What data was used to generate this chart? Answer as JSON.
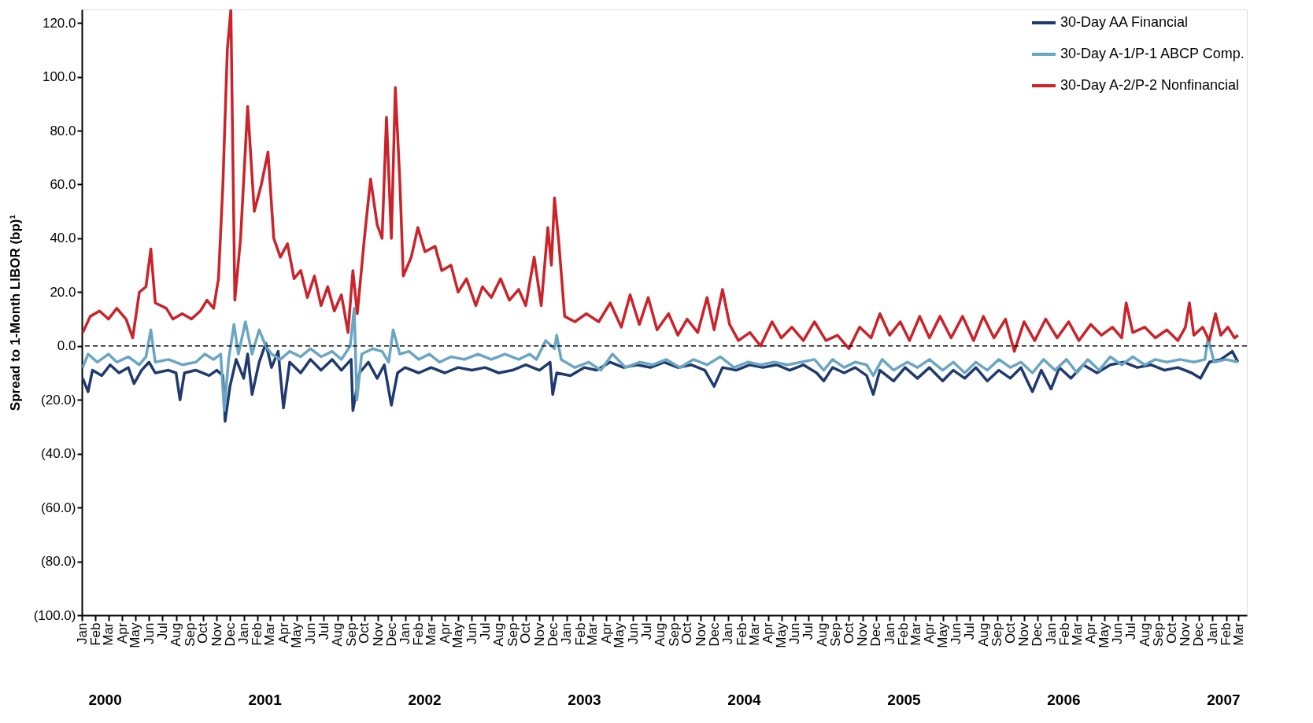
{
  "chart_data": {
    "type": "line",
    "ylabel": "Spread to 1-Month LIBOR (bp)¹",
    "xlim": [
      "2000-01-01",
      "2007-03-20"
    ],
    "ylim": [
      -100,
      125
    ],
    "yticks": [
      {
        "value": -100,
        "label": "(100.0)"
      },
      {
        "value": -80,
        "label": "(80.0)"
      },
      {
        "value": -60,
        "label": "(60.0)"
      },
      {
        "value": -40,
        "label": "(40.0)"
      },
      {
        "value": -20,
        "label": "(20.0)"
      },
      {
        "value": 0,
        "label": "0.0"
      },
      {
        "value": 20,
        "label": "20.0"
      },
      {
        "value": 40,
        "label": "40.0"
      },
      {
        "value": 60,
        "label": "60.0"
      },
      {
        "value": 80,
        "label": "80.0"
      },
      {
        "value": 100,
        "label": "100.0"
      },
      {
        "value": 120,
        "label": "120.0"
      }
    ],
    "xticks": [
      {
        "value": "2000-01",
        "label": "Jan"
      },
      {
        "value": "2000-02",
        "label": "Feb"
      },
      {
        "value": "2000-03",
        "label": "Mar"
      },
      {
        "value": "2000-04",
        "label": "Apr"
      },
      {
        "value": "2000-05",
        "label": "May"
      },
      {
        "value": "2000-06",
        "label": "Jun"
      },
      {
        "value": "2000-07",
        "label": "Jul"
      },
      {
        "value": "2000-08",
        "label": "Aug"
      },
      {
        "value": "2000-09",
        "label": "Sep"
      },
      {
        "value": "2000-10",
        "label": "Oct"
      },
      {
        "value": "2000-11",
        "label": "Nov"
      },
      {
        "value": "2000-12",
        "label": "Dec"
      },
      {
        "value": "2001-01",
        "label": "Jan"
      },
      {
        "value": "2001-02",
        "label": "Feb"
      },
      {
        "value": "2001-03",
        "label": "Mar"
      },
      {
        "value": "2001-04",
        "label": "Apr"
      },
      {
        "value": "2001-05",
        "label": "May"
      },
      {
        "value": "2001-06",
        "label": "Jun"
      },
      {
        "value": "2001-07",
        "label": "Jul"
      },
      {
        "value": "2001-08",
        "label": "Aug"
      },
      {
        "value": "2001-09",
        "label": "Sep"
      },
      {
        "value": "2001-10",
        "label": "Oct"
      },
      {
        "value": "2001-11",
        "label": "Nov"
      },
      {
        "value": "2001-12",
        "label": "Dec"
      },
      {
        "value": "2002-01",
        "label": "Jan"
      },
      {
        "value": "2002-02",
        "label": "Feb"
      },
      {
        "value": "2002-03",
        "label": "Mar"
      },
      {
        "value": "2002-04",
        "label": "Apr"
      },
      {
        "value": "2002-05",
        "label": "May"
      },
      {
        "value": "2002-06",
        "label": "Jun"
      },
      {
        "value": "2002-07",
        "label": "Jul"
      },
      {
        "value": "2002-08",
        "label": "Aug"
      },
      {
        "value": "2002-09",
        "label": "Sep"
      },
      {
        "value": "2002-10",
        "label": "Oct"
      },
      {
        "value": "2002-11",
        "label": "Nov"
      },
      {
        "value": "2002-12",
        "label": "Dec"
      },
      {
        "value": "2003-01",
        "label": "Jan"
      },
      {
        "value": "2003-02",
        "label": "Feb"
      },
      {
        "value": "2003-03",
        "label": "Mar"
      },
      {
        "value": "2003-04",
        "label": "Apr"
      },
      {
        "value": "2003-05",
        "label": "May"
      },
      {
        "value": "2003-06",
        "label": "Jun"
      },
      {
        "value": "2003-07",
        "label": "Jul"
      },
      {
        "value": "2003-08",
        "label": "Aug"
      },
      {
        "value": "2003-09",
        "label": "Sep"
      },
      {
        "value": "2003-10",
        "label": "Oct"
      },
      {
        "value": "2003-11",
        "label": "Nov"
      },
      {
        "value": "2003-12",
        "label": "Dec"
      },
      {
        "value": "2004-01",
        "label": "Jan"
      },
      {
        "value": "2004-02",
        "label": "Feb"
      },
      {
        "value": "2004-03",
        "label": "Mar"
      },
      {
        "value": "2004-04",
        "label": "Apr"
      },
      {
        "value": "2004-05",
        "label": "May"
      },
      {
        "value": "2004-06",
        "label": "Jun"
      },
      {
        "value": "2004-07",
        "label": "Jul"
      },
      {
        "value": "2004-08",
        "label": "Aug"
      },
      {
        "value": "2004-09",
        "label": "Sep"
      },
      {
        "value": "2004-10",
        "label": "Oct"
      },
      {
        "value": "2004-11",
        "label": "Nov"
      },
      {
        "value": "2004-12",
        "label": "Dec"
      },
      {
        "value": "2005-01",
        "label": "Jan"
      },
      {
        "value": "2005-02",
        "label": "Feb"
      },
      {
        "value": "2005-03",
        "label": "Mar"
      },
      {
        "value": "2005-04",
        "label": "Apr"
      },
      {
        "value": "2005-05",
        "label": "May"
      },
      {
        "value": "2005-06",
        "label": "Jun"
      },
      {
        "value": "2005-07",
        "label": "Jul"
      },
      {
        "value": "2005-08",
        "label": "Aug"
      },
      {
        "value": "2005-09",
        "label": "Sep"
      },
      {
        "value": "2005-10",
        "label": "Oct"
      },
      {
        "value": "2005-11",
        "label": "Nov"
      },
      {
        "value": "2005-12",
        "label": "Dec"
      },
      {
        "value": "2006-01",
        "label": "Jan"
      },
      {
        "value": "2006-02",
        "label": "Feb"
      },
      {
        "value": "2006-03",
        "label": "Mar"
      },
      {
        "value": "2006-04",
        "label": "Apr"
      },
      {
        "value": "2006-05",
        "label": "May"
      },
      {
        "value": "2006-06",
        "label": "Jun"
      },
      {
        "value": "2006-07",
        "label": "Jul"
      },
      {
        "value": "2006-08",
        "label": "Aug"
      },
      {
        "value": "2006-09",
        "label": "Sep"
      },
      {
        "value": "2006-10",
        "label": "Oct"
      },
      {
        "value": "2006-11",
        "label": "Nov"
      },
      {
        "value": "2006-12",
        "label": "Dec"
      },
      {
        "value": "2007-01",
        "label": "Jan"
      },
      {
        "value": "2007-02",
        "label": "Feb"
      },
      {
        "value": "2007-03",
        "label": "Mar"
      }
    ],
    "legend": "top right",
    "ref_lines": [
      {
        "axis": "y",
        "value": 0,
        "color": "#000000",
        "line_style": "dashed"
      }
    ],
    "annotations": [
      "2000",
      "2001",
      "2002",
      "2003",
      "2004",
      "2005",
      "2006",
      "2007"
    ],
    "series": [
      {
        "name": "30-Day AA Financial",
        "color": "#1f3a6e",
        "x": [
          "2000-01-03",
          "2000-01-15",
          "2000-01-25",
          "2000-02-15",
          "2000-03-05",
          "2000-03-25",
          "2000-04-15",
          "2000-04-28",
          "2000-05-15",
          "2000-06-01",
          "2000-06-15",
          "2000-07-15",
          "2000-08-01",
          "2000-08-10",
          "2000-08-20",
          "2000-09-15",
          "2000-10-15",
          "2000-11-01",
          "2000-11-15",
          "2000-11-20",
          "2000-12-01",
          "2000-12-15",
          "2001-01-01",
          "2001-01-10",
          "2001-01-20",
          "2001-02-05",
          "2001-02-20",
          "2001-03-05",
          "2001-03-20",
          "2001-04-01",
          "2001-04-15",
          "2001-05-10",
          "2001-06-01",
          "2001-06-25",
          "2001-07-20",
          "2001-08-10",
          "2001-09-01",
          "2001-09-05",
          "2001-09-20",
          "2001-10-10",
          "2001-10-30",
          "2001-11-15",
          "2001-12-01",
          "2001-12-15",
          "2002-01-01",
          "2002-02-01",
          "2002-03-01",
          "2002-04-01",
          "2002-05-01",
          "2002-06-01",
          "2002-07-01",
          "2002-08-01",
          "2002-09-01",
          "2002-10-01",
          "2002-11-01",
          "2002-11-25",
          "2002-12-01",
          "2002-12-10",
          "2003-01-10",
          "2003-02-10",
          "2003-03-10",
          "2003-04-10",
          "2003-05-10",
          "2003-06-10",
          "2003-07-10",
          "2003-08-10",
          "2003-09-10",
          "2003-10-10",
          "2003-11-10",
          "2003-12-01",
          "2003-12-20",
          "2004-01-20",
          "2004-02-20",
          "2004-03-20",
          "2004-04-20",
          "2004-05-20",
          "2004-06-20",
          "2004-07-20",
          "2004-08-05",
          "2004-08-25",
          "2004-09-20",
          "2004-10-15",
          "2004-11-10",
          "2004-11-25",
          "2004-12-10",
          "2005-01-10",
          "2005-02-05",
          "2005-03-05",
          "2005-04-01",
          "2005-05-01",
          "2005-05-25",
          "2005-06-20",
          "2005-07-15",
          "2005-08-10",
          "2005-09-05",
          "2005-10-01",
          "2005-10-25",
          "2005-11-20",
          "2005-12-10",
          "2006-01-01",
          "2006-01-20",
          "2006-02-15",
          "2006-03-15",
          "2006-04-15",
          "2006-05-15",
          "2006-06-15",
          "2006-07-15",
          "2006-08-15",
          "2006-09-15",
          "2006-10-15",
          "2006-11-15",
          "2006-12-05",
          "2006-12-25",
          "2007-01-20",
          "2007-02-15",
          "2007-02-28"
        ],
        "values": [
          -12,
          -17,
          -9,
          -11,
          -7,
          -10,
          -8,
          -14,
          -9,
          -6,
          -10,
          -9,
          -10,
          -20,
          -10,
          -9,
          -11,
          -9,
          -11,
          -28,
          -15,
          -5,
          -12,
          -3,
          -18,
          -6,
          1,
          -8,
          -2,
          -23,
          -6,
          -10,
          -5,
          -9,
          -5,
          -9,
          -5,
          -24,
          -10,
          -6,
          -12,
          -7,
          -22,
          -10,
          -8,
          -10,
          -8,
          -10,
          -8,
          -9,
          -8,
          -10,
          -9,
          -7,
          -9,
          -6,
          -18,
          -10,
          -11,
          -8,
          -9,
          -6,
          -8,
          -7,
          -8,
          -6,
          -8,
          -7,
          -9,
          -15,
          -8,
          -9,
          -7,
          -8,
          -7,
          -9,
          -7,
          -10,
          -13,
          -8,
          -10,
          -8,
          -11,
          -18,
          -9,
          -13,
          -8,
          -12,
          -8,
          -13,
          -9,
          -12,
          -8,
          -13,
          -9,
          -12,
          -8,
          -17,
          -9,
          -16,
          -8,
          -12,
          -7,
          -10,
          -7,
          -6,
          -8,
          -7,
          -9,
          -8,
          -10,
          -12,
          -6,
          -5,
          -2,
          -6
        ]
      },
      {
        "name": "30-Day A-1/P-1 ABCP Comp.",
        "color": "#6aa6c4",
        "x": [
          "2000-01-03",
          "2000-01-15",
          "2000-02-05",
          "2000-03-01",
          "2000-03-20",
          "2000-04-15",
          "2000-05-10",
          "2000-05-25",
          "2000-06-05",
          "2000-06-15",
          "2000-07-15",
          "2000-08-15",
          "2000-09-15",
          "2000-10-05",
          "2000-10-25",
          "2000-11-10",
          "2000-11-18",
          "2000-11-28",
          "2000-12-10",
          "2000-12-20",
          "2001-01-05",
          "2001-01-20",
          "2001-02-05",
          "2001-02-20",
          "2001-03-05",
          "2001-03-25",
          "2001-04-15",
          "2001-05-10",
          "2001-06-01",
          "2001-06-25",
          "2001-07-20",
          "2001-08-10",
          "2001-08-30",
          "2001-09-08",
          "2001-09-14",
          "2001-09-25",
          "2001-10-20",
          "2001-11-10",
          "2001-11-25",
          "2001-12-05",
          "2001-12-20",
          "2002-01-10",
          "2002-02-01",
          "2002-02-25",
          "2002-03-20",
          "2002-04-15",
          "2002-05-15",
          "2002-06-15",
          "2002-07-15",
          "2002-08-15",
          "2002-09-15",
          "2002-10-10",
          "2002-10-25",
          "2002-11-15",
          "2002-12-05",
          "2002-12-10",
          "2002-12-20",
          "2003-01-20",
          "2003-02-20",
          "2003-03-20",
          "2003-04-15",
          "2003-05-15",
          "2003-06-15",
          "2003-07-15",
          "2003-08-15",
          "2003-09-15",
          "2003-10-15",
          "2003-11-15",
          "2003-12-15",
          "2004-01-15",
          "2004-02-15",
          "2004-03-15",
          "2004-04-15",
          "2004-05-15",
          "2004-06-15",
          "2004-07-15",
          "2004-08-05",
          "2004-08-25",
          "2004-09-20",
          "2004-10-15",
          "2004-11-10",
          "2004-11-25",
          "2004-12-15",
          "2005-01-10",
          "2005-02-10",
          "2005-03-05",
          "2005-04-01",
          "2005-05-01",
          "2005-05-25",
          "2005-06-20",
          "2005-07-15",
          "2005-08-10",
          "2005-09-05",
          "2005-10-01",
          "2005-10-25",
          "2005-11-20",
          "2005-12-15",
          "2006-01-10",
          "2006-02-05",
          "2006-03-01",
          "2006-03-25",
          "2006-04-20",
          "2006-05-15",
          "2006-06-10",
          "2006-07-05",
          "2006-08-01",
          "2006-08-25",
          "2006-09-20",
          "2006-10-20",
          "2006-11-20",
          "2006-12-15",
          "2006-12-22",
          "2007-01-05",
          "2007-02-01",
          "2007-02-28"
        ],
        "values": [
          -8,
          -3,
          -6,
          -3,
          -6,
          -4,
          -7,
          -4,
          6,
          -6,
          -5,
          -7,
          -6,
          -3,
          -5,
          -3,
          -24,
          -5,
          8,
          -3,
          9,
          -3,
          6,
          0,
          -3,
          -5,
          -2,
          -4,
          -1,
          -4,
          -2,
          -5,
          0,
          14,
          -20,
          -3,
          -1,
          -2,
          -6,
          6,
          -3,
          -2,
          -5,
          -3,
          -6,
          -4,
          -5,
          -3,
          -5,
          -3,
          -5,
          -3,
          -5,
          2,
          -1,
          4,
          -5,
          -8,
          -6,
          -9,
          -3,
          -8,
          -6,
          -7,
          -5,
          -8,
          -5,
          -7,
          -4,
          -8,
          -6,
          -7,
          -6,
          -7,
          -6,
          -5,
          -9,
          -5,
          -8,
          -6,
          -7,
          -11,
          -5,
          -9,
          -6,
          -8,
          -5,
          -9,
          -6,
          -10,
          -6,
          -9,
          -5,
          -8,
          -6,
          -10,
          -5,
          -9,
          -5,
          -10,
          -5,
          -9,
          -4,
          -7,
          -4,
          -7,
          -5,
          -6,
          -5,
          -6,
          -5,
          3,
          -6,
          -5,
          -6
        ]
      },
      {
        "name": "30-Day A-2/P-2 Nonfinancial",
        "color": "#cc2229",
        "x": [
          "2000-01-03",
          "2000-01-20",
          "2000-02-10",
          "2000-03-01",
          "2000-03-20",
          "2000-04-10",
          "2000-04-25",
          "2000-05-10",
          "2000-05-25",
          "2000-06-05",
          "2000-06-15",
          "2000-07-10",
          "2000-07-25",
          "2000-08-15",
          "2000-09-05",
          "2000-09-25",
          "2000-10-10",
          "2000-10-25",
          "2000-11-05",
          "2000-11-15",
          "2000-11-25",
          "2000-12-03",
          "2000-12-12",
          "2000-12-25",
          "2001-01-10",
          "2001-01-25",
          "2001-02-10",
          "2001-02-25",
          "2001-03-10",
          "2001-03-25",
          "2001-04-10",
          "2001-04-25",
          "2001-05-10",
          "2001-05-25",
          "2001-06-10",
          "2001-06-25",
          "2001-07-10",
          "2001-07-25",
          "2001-08-10",
          "2001-08-25",
          "2001-09-05",
          "2001-09-15",
          "2001-10-01",
          "2001-10-15",
          "2001-10-30",
          "2001-11-10",
          "2001-11-20",
          "2001-12-01",
          "2001-12-10",
          "2001-12-20",
          "2001-12-28",
          "2002-01-15",
          "2002-01-30",
          "2002-02-15",
          "2002-03-10",
          "2002-03-25",
          "2002-04-15",
          "2002-05-01",
          "2002-05-20",
          "2002-06-10",
          "2002-06-25",
          "2002-07-15",
          "2002-08-05",
          "2002-08-25",
          "2002-09-15",
          "2002-10-01",
          "2002-10-20",
          "2002-11-05",
          "2002-11-20",
          "2002-11-28",
          "2002-12-05",
          "2002-12-15",
          "2002-12-28",
          "2003-01-20",
          "2003-02-15",
          "2003-03-15",
          "2003-04-10",
          "2003-05-05",
          "2003-05-25",
          "2003-06-15",
          "2003-07-05",
          "2003-07-25",
          "2003-08-20",
          "2003-09-10",
          "2003-10-01",
          "2003-10-25",
          "2003-11-15",
          "2003-12-01",
          "2003-12-20",
          "2004-01-05",
          "2004-01-25",
          "2004-02-20",
          "2004-03-15",
          "2004-04-10",
          "2004-05-01",
          "2004-05-25",
          "2004-06-20",
          "2004-07-15",
          "2004-08-10",
          "2004-09-05",
          "2004-10-01",
          "2004-10-25",
          "2004-11-20",
          "2004-12-10",
          "2005-01-01",
          "2005-01-25",
          "2005-02-15",
          "2005-03-10",
          "2005-04-01",
          "2005-04-25",
          "2005-05-20",
          "2005-06-15",
          "2005-07-10",
          "2005-08-01",
          "2005-08-25",
          "2005-09-20",
          "2005-10-10",
          "2005-11-01",
          "2005-11-25",
          "2005-12-20",
          "2006-01-15",
          "2006-02-10",
          "2006-03-05",
          "2006-04-01",
          "2006-04-25",
          "2006-05-20",
          "2006-06-10",
          "2006-06-20",
          "2006-07-05",
          "2006-08-01",
          "2006-08-25",
          "2006-09-20",
          "2006-10-15",
          "2006-11-01",
          "2006-11-10",
          "2006-11-20",
          "2006-12-10",
          "2006-12-25",
          "2007-01-08",
          "2007-01-20",
          "2007-02-05",
          "2007-02-20",
          "2007-02-28"
        ],
        "values": [
          5,
          11,
          13,
          10,
          14,
          10,
          3,
          20,
          22,
          36,
          16,
          14,
          10,
          12,
          10,
          13,
          17,
          14,
          25,
          60,
          110,
          125,
          17,
          40,
          89,
          50,
          60,
          72,
          40,
          33,
          38,
          25,
          28,
          18,
          26,
          15,
          22,
          13,
          19,
          5,
          28,
          12,
          40,
          62,
          45,
          40,
          85,
          40,
          96,
          62,
          26,
          33,
          44,
          35,
          37,
          28,
          30,
          20,
          25,
          15,
          22,
          18,
          25,
          17,
          21,
          15,
          33,
          15,
          44,
          30,
          55,
          38,
          11,
          9,
          12,
          9,
          16,
          7,
          19,
          8,
          18,
          6,
          12,
          4,
          10,
          5,
          18,
          6,
          21,
          8,
          2,
          5,
          0,
          9,
          3,
          7,
          2,
          9,
          2,
          4,
          -1,
          7,
          3,
          12,
          4,
          9,
          2,
          11,
          3,
          11,
          3,
          11,
          2,
          11,
          3,
          10,
          -2,
          9,
          2,
          10,
          3,
          9,
          2,
          8,
          4,
          7,
          3,
          16,
          5,
          7,
          3,
          6,
          2,
          7,
          16,
          4,
          7,
          2,
          12,
          4,
          7,
          3,
          4
        ]
      }
    ]
  }
}
